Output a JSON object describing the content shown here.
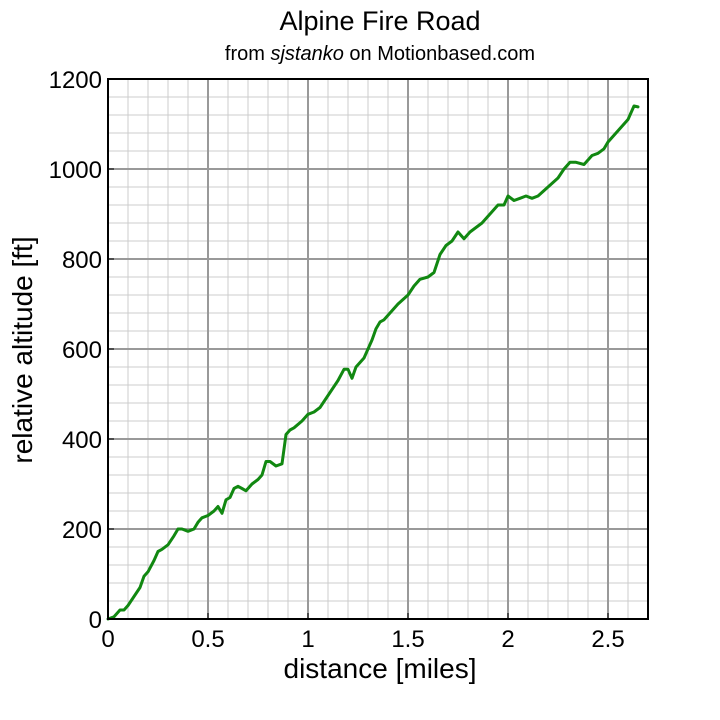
{
  "chart_data": {
    "type": "line",
    "title": "Alpine Fire Road",
    "subtitle": {
      "prefix": "from ",
      "user": "sjstanko",
      "suffix": " on Motionbased.com"
    },
    "xlabel": "distance [miles]",
    "ylabel": "relative altitude [ft]",
    "xlim": [
      0,
      2.7
    ],
    "ylim": [
      0,
      1200
    ],
    "x_ticks": [
      0,
      0.5,
      1,
      1.5,
      2,
      2.5
    ],
    "x_tick_labels": [
      "0",
      "0.5",
      "1",
      "1.5",
      "2",
      "2.5"
    ],
    "y_ticks": [
      0,
      200,
      400,
      600,
      800,
      1000,
      1200
    ],
    "y_tick_labels": [
      "0",
      "200",
      "400",
      "600",
      "800",
      "1000",
      "1200"
    ],
    "major_grid": true,
    "minor_grid": true,
    "minor_x_step": 0.1,
    "minor_y_step": 40,
    "line_color": "#118811",
    "series": [
      {
        "x": [
          0.0,
          0.03,
          0.06,
          0.08,
          0.1,
          0.13,
          0.16,
          0.18,
          0.2,
          0.23,
          0.25,
          0.27,
          0.3,
          0.33,
          0.35,
          0.37,
          0.4,
          0.43,
          0.45,
          0.47,
          0.5,
          0.53,
          0.55,
          0.57,
          0.59,
          0.61,
          0.63,
          0.65,
          0.67,
          0.69,
          0.72,
          0.75,
          0.77,
          0.79,
          0.81,
          0.84,
          0.87,
          0.89,
          0.91,
          0.93,
          0.97,
          1.0,
          1.03,
          1.06,
          1.09,
          1.12,
          1.15,
          1.18,
          1.2,
          1.22,
          1.24,
          1.26,
          1.28,
          1.3,
          1.32,
          1.34,
          1.36,
          1.38,
          1.41,
          1.45,
          1.5,
          1.53,
          1.56,
          1.6,
          1.63,
          1.66,
          1.69,
          1.72,
          1.75,
          1.78,
          1.81,
          1.84,
          1.87,
          1.91,
          1.95,
          1.98,
          2.0,
          2.03,
          2.06,
          2.09,
          2.12,
          2.15,
          2.2,
          2.25,
          2.28,
          2.31,
          2.34,
          2.38,
          2.42,
          2.45,
          2.48,
          2.5,
          2.53,
          2.56,
          2.6,
          2.63,
          2.65
        ],
        "y": [
          0,
          5,
          20,
          20,
          30,
          50,
          70,
          95,
          105,
          130,
          150,
          155,
          165,
          185,
          200,
          200,
          195,
          200,
          215,
          225,
          230,
          240,
          250,
          235,
          265,
          270,
          290,
          295,
          290,
          285,
          300,
          310,
          320,
          350,
          350,
          340,
          345,
          410,
          420,
          425,
          440,
          455,
          460,
          470,
          490,
          510,
          530,
          555,
          555,
          535,
          560,
          570,
          580,
          600,
          620,
          645,
          660,
          665,
          680,
          700,
          720,
          740,
          755,
          760,
          770,
          810,
          830,
          840,
          860,
          845,
          860,
          870,
          880,
          900,
          920,
          920,
          940,
          930,
          935,
          940,
          935,
          940,
          960,
          980,
          1000,
          1015,
          1015,
          1010,
          1030,
          1035,
          1045,
          1060,
          1075,
          1090,
          1110,
          1140,
          1138
        ]
      }
    ]
  }
}
